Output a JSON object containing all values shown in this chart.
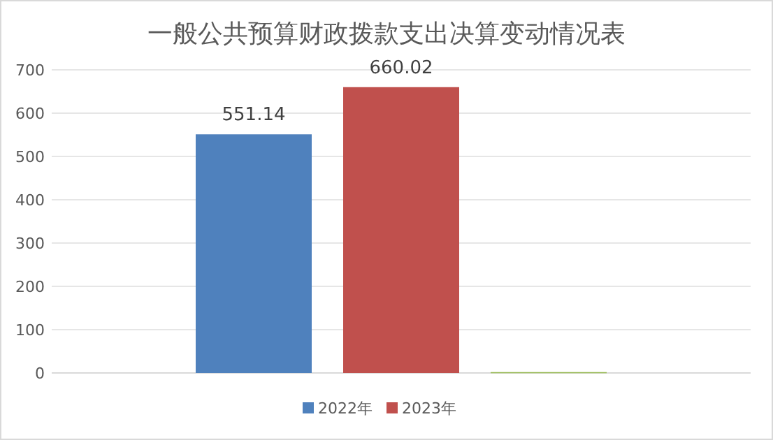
{
  "chart_data": {
    "type": "bar",
    "title": "一般公共预算财政拨款支出决算变动情况表",
    "categories": [
      null
    ],
    "series": [
      {
        "name": "2022年",
        "color": "#4f81bd",
        "values": [
          551.14
        ],
        "value_labels": [
          "551.14"
        ]
      },
      {
        "name": "2023年",
        "color": "#c0504d",
        "values": [
          660.02
        ],
        "value_labels": [
          "660.02"
        ]
      },
      {
        "color": "#9bbb59",
        "values": [
          2
        ],
        "value_labels": [
          null
        ]
      }
    ],
    "ylim": [
      0,
      700
    ],
    "yticks": [
      0,
      100,
      200,
      300,
      400,
      500,
      600,
      700
    ],
    "grid": "y",
    "legend": "bottom"
  }
}
